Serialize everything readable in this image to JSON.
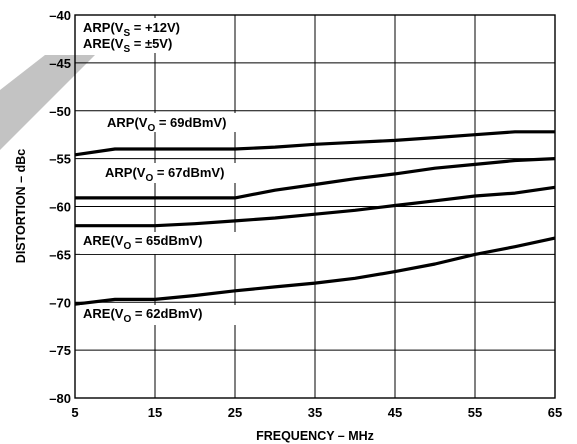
{
  "chart_data": {
    "type": "line",
    "xlabel": "FREQUENCY – MHz",
    "ylabel": "DISTORTION – dBc",
    "xlim": [
      5,
      65
    ],
    "ylim": [
      -80,
      -40
    ],
    "xticks": [
      5,
      15,
      25,
      35,
      45,
      55,
      65
    ],
    "xtick_labels": [
      "5",
      "15",
      "25",
      "35",
      "45",
      "55",
      "65"
    ],
    "yticks": [
      -40,
      -45,
      -50,
      -55,
      -60,
      -65,
      -70,
      -75,
      -80
    ],
    "ytick_labels": [
      "–40",
      "–45",
      "–50",
      "–55",
      "–60",
      "–65",
      "–70",
      "–75",
      "–80"
    ],
    "grid": true,
    "legend_block": {
      "line1": {
        "main": "ARP(V",
        "sub": "S",
        "rest": " = +12V)"
      },
      "line2": {
        "main": "ARE(V",
        "sub": "S",
        "rest": " = ±5V)"
      }
    },
    "series": [
      {
        "label": {
          "main": "ARP(V",
          "sub": "O",
          "rest": " = 69dBmV)"
        },
        "x": [
          5,
          10,
          15,
          20,
          25,
          30,
          35,
          40,
          45,
          50,
          55,
          60,
          65
        ],
        "y": [
          -54.6,
          -54.0,
          -54.0,
          -54.0,
          -54.0,
          -53.8,
          -53.5,
          -53.3,
          -53.1,
          -52.8,
          -52.5,
          -52.2,
          -52.2
        ]
      },
      {
        "label": {
          "main": "ARP(V",
          "sub": "O",
          "rest": " = 67dBmV)"
        },
        "x": [
          5,
          10,
          15,
          20,
          25,
          30,
          35,
          40,
          45,
          50,
          55,
          60,
          65
        ],
        "y": [
          -59.1,
          -59.1,
          -59.1,
          -59.1,
          -59.1,
          -58.3,
          -57.7,
          -57.1,
          -56.6,
          -56.0,
          -55.6,
          -55.2,
          -55.0
        ]
      },
      {
        "label": {
          "main": "ARE(V",
          "sub": "O",
          "rest": " = 65dBmV)"
        },
        "x": [
          5,
          10,
          15,
          20,
          25,
          30,
          35,
          40,
          45,
          50,
          55,
          60,
          65
        ],
        "y": [
          -62.0,
          -62.0,
          -62.0,
          -61.8,
          -61.5,
          -61.2,
          -60.8,
          -60.4,
          -59.9,
          -59.4,
          -58.9,
          -58.6,
          -58.0
        ]
      },
      {
        "label": {
          "main": "ARE(V",
          "sub": "O",
          "rest": " = 62dBmV)"
        },
        "x": [
          5,
          10,
          15,
          20,
          25,
          30,
          35,
          40,
          45,
          50,
          55,
          60,
          65
        ],
        "y": [
          -70.2,
          -69.7,
          -69.7,
          -69.3,
          -68.8,
          -68.4,
          -68.0,
          -67.5,
          -66.8,
          -66.0,
          -65.0,
          -64.2,
          -63.3
        ]
      }
    ]
  }
}
